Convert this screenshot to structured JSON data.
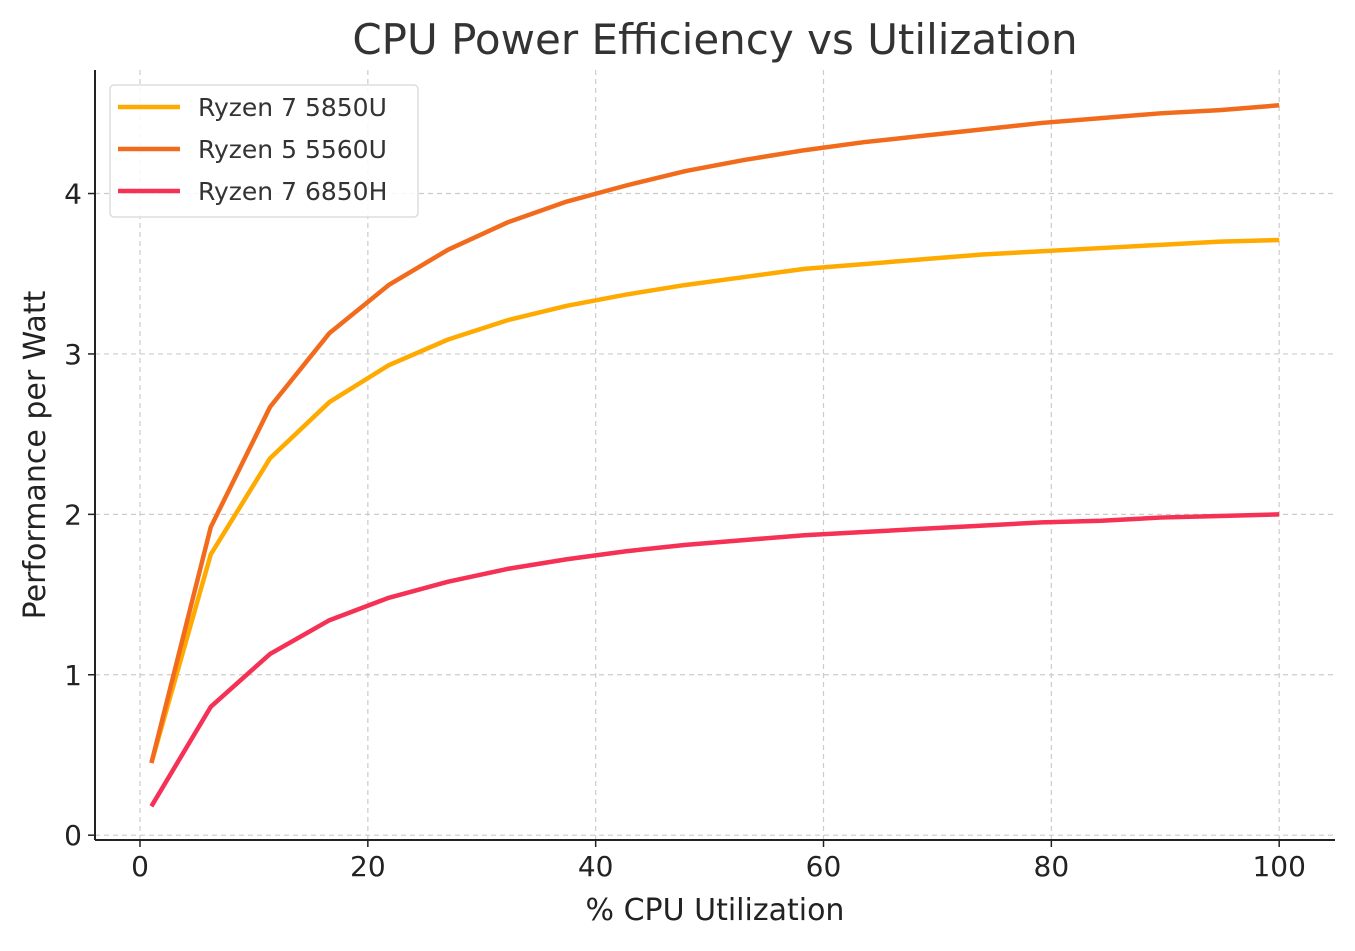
{
  "chart_data": {
    "type": "line",
    "title": "CPU Power Efficiency vs Utilization",
    "xlabel": "% CPU Utilization",
    "ylabel": "Performance per Watt",
    "xlim": [
      -3.95,
      104.9
    ],
    "ylim": [
      -0.03,
      4.77
    ],
    "xticks": [
      0,
      20,
      40,
      60,
      80,
      100
    ],
    "yticks": [
      0,
      1,
      2,
      3,
      4
    ],
    "grid": true,
    "legend_position": "top-left",
    "x": [
      1,
      6.21,
      11.42,
      16.63,
      21.84,
      27.05,
      32.26,
      37.47,
      42.68,
      47.89,
      53.11,
      58.32,
      63.53,
      68.74,
      73.95,
      79.16,
      84.37,
      89.58,
      94.79,
      100
    ],
    "series": [
      {
        "name": "Ryzen 7 5850U",
        "color": "#FFAA00",
        "values": [
          0.45,
          1.75,
          2.35,
          2.7,
          2.93,
          3.09,
          3.21,
          3.3,
          3.37,
          3.43,
          3.48,
          3.53,
          3.56,
          3.59,
          3.62,
          3.64,
          3.66,
          3.68,
          3.7,
          3.71
        ]
      },
      {
        "name": "Ryzen 5 5560U",
        "color": "#F26B1D",
        "values": [
          0.45,
          1.92,
          2.67,
          3.13,
          3.43,
          3.65,
          3.82,
          3.95,
          4.05,
          4.14,
          4.21,
          4.27,
          4.32,
          4.36,
          4.4,
          4.44,
          4.47,
          4.5,
          4.52,
          4.55
        ]
      },
      {
        "name": "Ryzen 7 6850H",
        "color": "#F53155",
        "values": [
          0.18,
          0.8,
          1.13,
          1.34,
          1.48,
          1.58,
          1.66,
          1.72,
          1.77,
          1.81,
          1.84,
          1.87,
          1.89,
          1.91,
          1.93,
          1.95,
          1.96,
          1.98,
          1.99,
          2.0
        ]
      }
    ]
  }
}
